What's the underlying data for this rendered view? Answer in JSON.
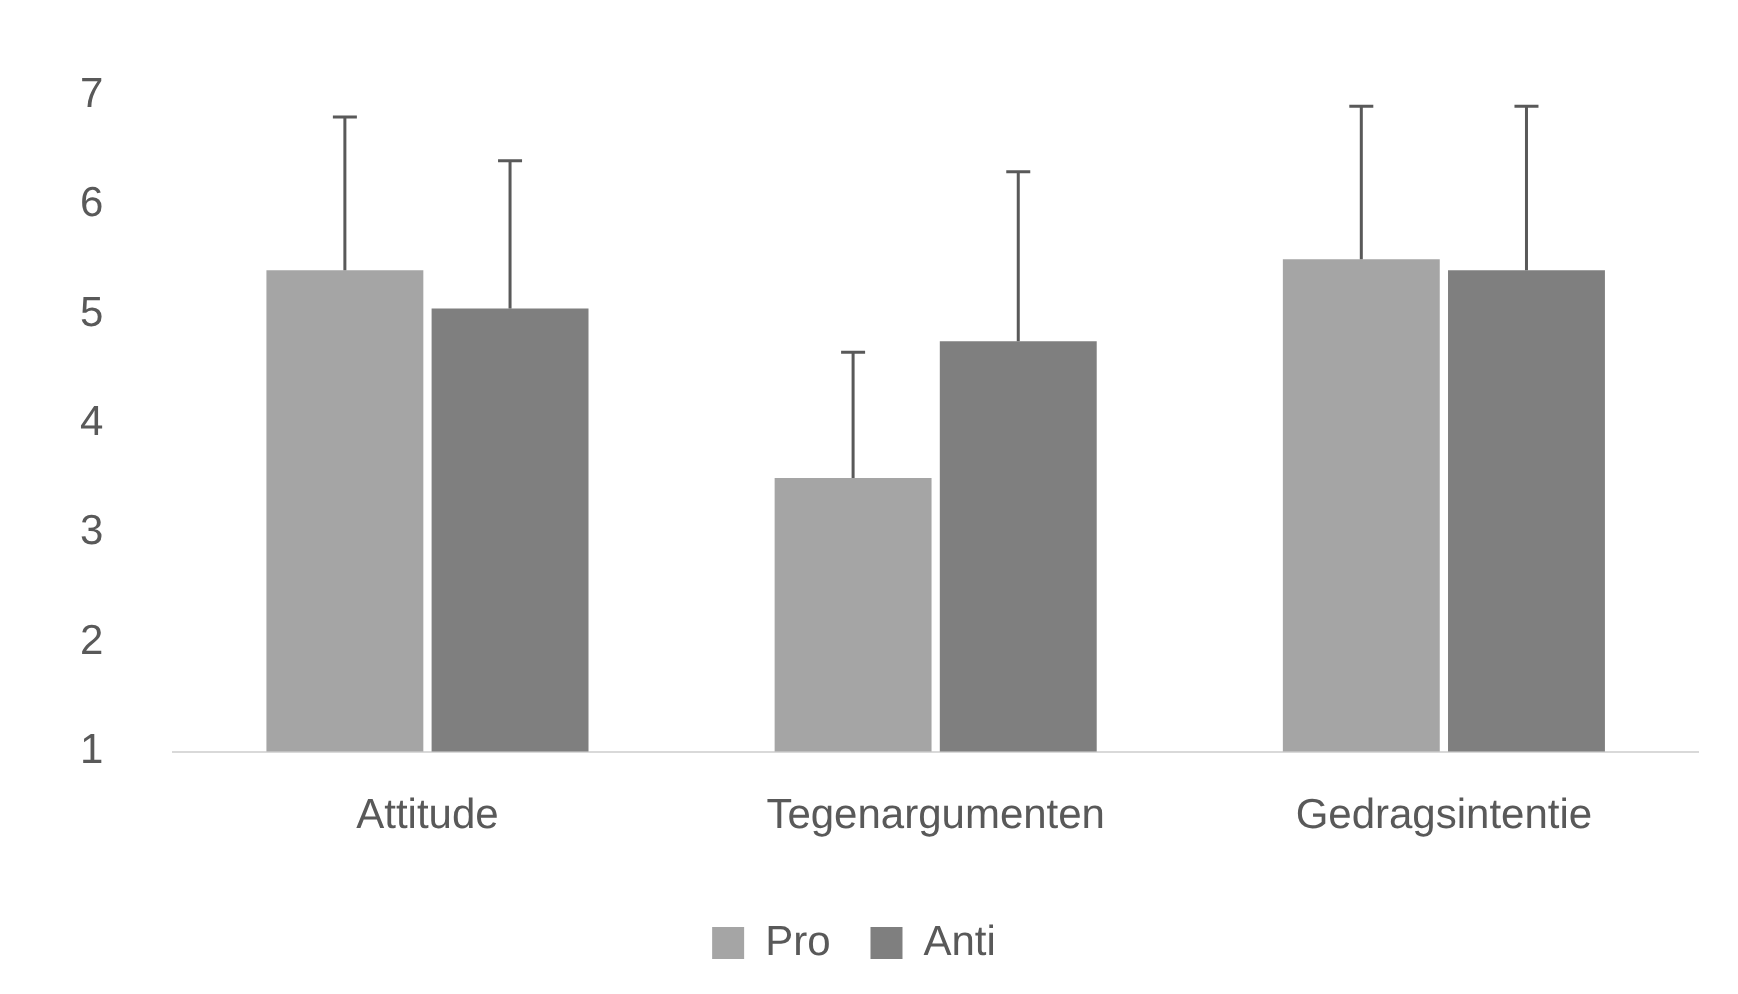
{
  "chart_data": {
    "type": "bar",
    "categories": [
      "Attitude",
      "Tegenargumenten",
      "Gedragsintentie"
    ],
    "series": [
      {
        "name": "Pro",
        "color": "#a5a5a5",
        "values": [
          5.4,
          3.5,
          5.5
        ],
        "errors": [
          [
            5.4,
            6.8
          ],
          [
            3.5,
            4.65
          ],
          [
            5.5,
            6.9
          ]
        ]
      },
      {
        "name": "Anti",
        "color": "#7f7f7f",
        "values": [
          5.05,
          4.75,
          5.4
        ],
        "errors": [
          [
            5.05,
            6.4
          ],
          [
            4.75,
            6.3
          ],
          [
            5.4,
            6.9
          ]
        ]
      }
    ],
    "ylim": [
      1,
      7
    ],
    "yticks": [
      1,
      2,
      3,
      4,
      5,
      6,
      7
    ],
    "grid": false,
    "legend": "bottom"
  }
}
